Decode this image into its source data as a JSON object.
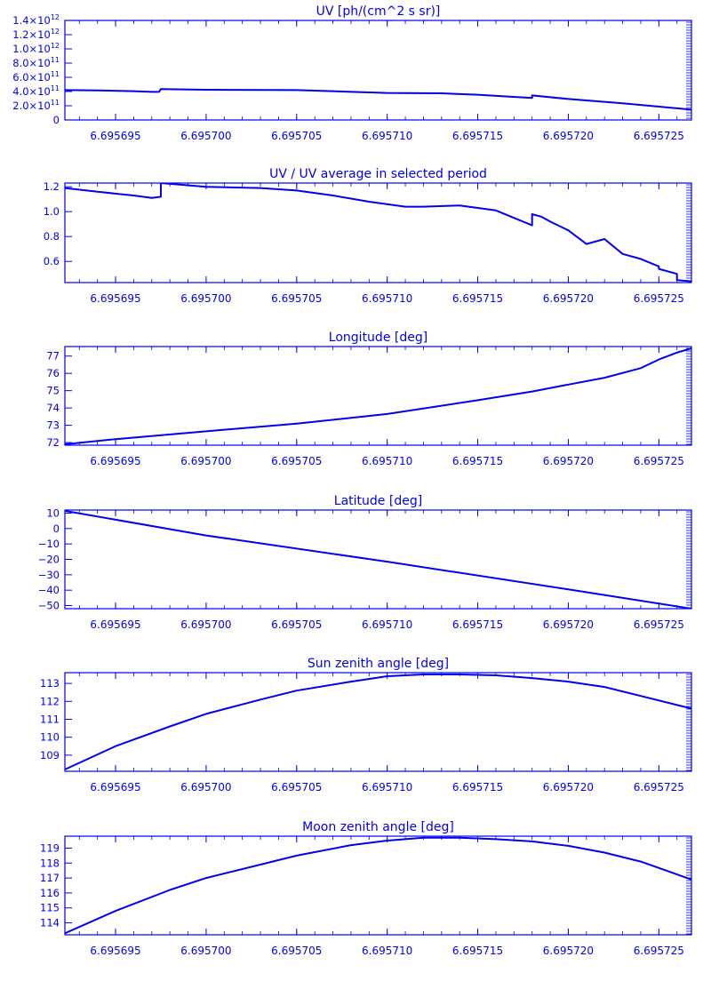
{
  "theme": {
    "color": "#0000ee",
    "background": "#ffffff"
  },
  "chart_data": [
    {
      "type": "line",
      "title": "UV [ph/(cm^2 s sr)]",
      "xlim": [
        6.6956922,
        6.6957268
      ],
      "x_ticks": [
        "6.695695",
        "6.695700",
        "6.695705",
        "6.695710",
        "6.695715",
        "6.695720",
        "6.695725"
      ],
      "x_tick_values": [
        6.695695,
        6.6957,
        6.695705,
        6.69571,
        6.695715,
        6.69572,
        6.695725
      ],
      "ylim": [
        0,
        1400000000000.0
      ],
      "y_ticks": [
        {
          "value": 0,
          "m": "0",
          "e": ""
        },
        {
          "value": 200000000000.0,
          "m": "2.0×10",
          "e": "11"
        },
        {
          "value": 400000000000.0,
          "m": "4.0×10",
          "e": "11"
        },
        {
          "value": 600000000000.0,
          "m": "6.0×10",
          "e": "11"
        },
        {
          "value": 800000000000.0,
          "m": "8.0×10",
          "e": "11"
        },
        {
          "value": 1000000000000.0,
          "m": "1.0×10",
          "e": "12"
        },
        {
          "value": 1200000000000.0,
          "m": "1.2×10",
          "e": "12"
        },
        {
          "value": 1400000000000.0,
          "m": "1.4×10",
          "e": "12"
        }
      ],
      "series": [
        {
          "x": [
            6.6956922,
            6.695694,
            6.695696,
            6.695697,
            6.6956974,
            6.6956975,
            6.6957,
            6.695705,
            6.69571,
            6.695713,
            6.695715,
            6.695718,
            6.695718,
            6.69572,
            6.695723,
            6.6957268
          ],
          "y": [
            420000000000.0,
            415000000000.0,
            405000000000.0,
            395000000000.0,
            395000000000.0,
            435000000000.0,
            425000000000.0,
            420000000000.0,
            380000000000.0,
            375000000000.0,
            355000000000.0,
            310000000000.0,
            345000000000.0,
            295000000000.0,
            235000000000.0,
            145000000000.0
          ]
        }
      ]
    },
    {
      "type": "line",
      "title": "UV / UV average in selected period",
      "xlim": [
        6.6956922,
        6.6957268
      ],
      "x_ticks": [
        "6.695695",
        "6.695700",
        "6.695705",
        "6.695710",
        "6.695715",
        "6.695720",
        "6.695725"
      ],
      "x_tick_values": [
        6.695695,
        6.6957,
        6.695705,
        6.69571,
        6.695715,
        6.69572,
        6.695725
      ],
      "ylim": [
        0.43,
        1.23
      ],
      "y_ticks": [
        {
          "value": 0.6,
          "m": "0.6",
          "e": ""
        },
        {
          "value": 0.8,
          "m": "0.8",
          "e": ""
        },
        {
          "value": 1.0,
          "m": "1.0",
          "e": ""
        },
        {
          "value": 1.2,
          "m": "1.2",
          "e": ""
        }
      ],
      "series": [
        {
          "x": [
            6.6956922,
            6.695694,
            6.695696,
            6.695697,
            6.6956975,
            6.6956975,
            6.6957,
            6.695703,
            6.695705,
            6.695707,
            6.695709,
            6.695711,
            6.695712,
            6.695714,
            6.695716,
            6.695718,
            6.695718,
            6.6957185,
            6.695719,
            6.69572,
            6.695721,
            6.695722,
            6.695723,
            6.695724,
            6.695725,
            6.695725,
            6.695726,
            6.695726,
            6.6957268
          ],
          "y": [
            1.19,
            1.16,
            1.13,
            1.11,
            1.12,
            1.23,
            1.2,
            1.19,
            1.17,
            1.13,
            1.08,
            1.04,
            1.04,
            1.05,
            1.01,
            0.89,
            0.98,
            0.96,
            0.92,
            0.85,
            0.74,
            0.78,
            0.66,
            0.62,
            0.56,
            0.54,
            0.5,
            0.45,
            0.44
          ]
        }
      ]
    },
    {
      "type": "line",
      "title": "Longitude [deg]",
      "xlim": [
        6.6956922,
        6.6957268
      ],
      "x_ticks": [
        "6.695695",
        "6.695700",
        "6.695705",
        "6.695710",
        "6.695715",
        "6.695720",
        "6.695725"
      ],
      "x_tick_values": [
        6.695695,
        6.6957,
        6.695705,
        6.69571,
        6.695715,
        6.69572,
        6.695725
      ],
      "ylim": [
        71.85,
        77.55
      ],
      "y_ticks": [
        {
          "value": 72,
          "m": "72",
          "e": ""
        },
        {
          "value": 73,
          "m": "73",
          "e": ""
        },
        {
          "value": 74,
          "m": "74",
          "e": ""
        },
        {
          "value": 75,
          "m": "75",
          "e": ""
        },
        {
          "value": 76,
          "m": "76",
          "e": ""
        },
        {
          "value": 77,
          "m": "77",
          "e": ""
        }
      ],
      "series": [
        {
          "x": [
            6.6956922,
            6.695695,
            6.6957,
            6.695705,
            6.69571,
            6.695715,
            6.695718,
            6.69572,
            6.695722,
            6.695724,
            6.695725,
            6.695726,
            6.6957268
          ],
          "y": [
            71.9,
            72.2,
            72.65,
            73.1,
            73.65,
            74.45,
            74.95,
            75.35,
            75.75,
            76.3,
            76.8,
            77.2,
            77.45
          ]
        }
      ]
    },
    {
      "type": "line",
      "title": "Latitude [deg]",
      "xlim": [
        6.6956922,
        6.6957268
      ],
      "x_ticks": [
        "6.695695",
        "6.695700",
        "6.695705",
        "6.695710",
        "6.695715",
        "6.695720",
        "6.695725"
      ],
      "x_tick_values": [
        6.695695,
        6.6957,
        6.695705,
        6.69571,
        6.695715,
        6.69572,
        6.695725
      ],
      "ylim": [
        -52,
        12
      ],
      "y_ticks": [
        {
          "value": 10,
          "m": "10",
          "e": ""
        },
        {
          "value": 0,
          "m": "0",
          "e": ""
        },
        {
          "value": -10,
          "m": "−10",
          "e": ""
        },
        {
          "value": -20,
          "m": "−20",
          "e": ""
        },
        {
          "value": -30,
          "m": "−30",
          "e": ""
        },
        {
          "value": -40,
          "m": "−40",
          "e": ""
        },
        {
          "value": -50,
          "m": "−50",
          "e": ""
        }
      ],
      "series": [
        {
          "x": [
            6.6956922,
            6.6957,
            6.69571,
            6.69572,
            6.6957268
          ],
          "y": [
            11.5,
            -4.5,
            -21.5,
            -39.5,
            -52
          ]
        }
      ]
    },
    {
      "type": "line",
      "title": "Sun zenith angle [deg]",
      "xlim": [
        6.6956922,
        6.6957268
      ],
      "x_ticks": [
        "6.695695",
        "6.695700",
        "6.695705",
        "6.695710",
        "6.695715",
        "6.695720",
        "6.695725"
      ],
      "x_tick_values": [
        6.695695,
        6.6957,
        6.695705,
        6.69571,
        6.695715,
        6.69572,
        6.695725
      ],
      "ylim": [
        108.1,
        113.6
      ],
      "y_ticks": [
        {
          "value": 109,
          "m": "109",
          "e": ""
        },
        {
          "value": 110,
          "m": "110",
          "e": ""
        },
        {
          "value": 111,
          "m": "111",
          "e": ""
        },
        {
          "value": 112,
          "m": "112",
          "e": ""
        },
        {
          "value": 113,
          "m": "113",
          "e": ""
        }
      ],
      "series": [
        {
          "x": [
            6.6956922,
            6.695695,
            6.695698,
            6.6957,
            6.695703,
            6.695705,
            6.695708,
            6.69571,
            6.695712,
            6.695714,
            6.695716,
            6.695718,
            6.69572,
            6.695722,
            6.695724,
            6.6957268
          ],
          "y": [
            108.2,
            109.5,
            110.6,
            111.3,
            112.1,
            112.6,
            113.1,
            113.4,
            113.5,
            113.5,
            113.45,
            113.3,
            113.1,
            112.8,
            112.3,
            111.6
          ]
        }
      ]
    },
    {
      "type": "line",
      "title": "Moon zenith angle [deg]",
      "xlim": [
        6.6956922,
        6.6957268
      ],
      "x_ticks": [
        "6.695695",
        "6.695700",
        "6.695705",
        "6.695710",
        "6.695715",
        "6.695720",
        "6.695725"
      ],
      "x_tick_values": [
        6.695695,
        6.6957,
        6.695705,
        6.69571,
        6.695715,
        6.69572,
        6.695725
      ],
      "ylim": [
        113.2,
        119.8
      ],
      "y_ticks": [
        {
          "value": 114,
          "m": "114",
          "e": ""
        },
        {
          "value": 115,
          "m": "115",
          "e": ""
        },
        {
          "value": 116,
          "m": "116",
          "e": ""
        },
        {
          "value": 117,
          "m": "117",
          "e": ""
        },
        {
          "value": 118,
          "m": "118",
          "e": ""
        },
        {
          "value": 119,
          "m": "119",
          "e": ""
        }
      ],
      "series": [
        {
          "x": [
            6.6956922,
            6.695695,
            6.695698,
            6.6957,
            6.695703,
            6.695705,
            6.695708,
            6.69571,
            6.695712,
            6.695714,
            6.695716,
            6.695718,
            6.69572,
            6.695722,
            6.695724,
            6.6957268
          ],
          "y": [
            113.3,
            114.8,
            116.2,
            117.0,
            117.9,
            118.5,
            119.2,
            119.5,
            119.7,
            119.7,
            119.6,
            119.45,
            119.15,
            118.7,
            118.1,
            116.9
          ]
        }
      ]
    }
  ]
}
